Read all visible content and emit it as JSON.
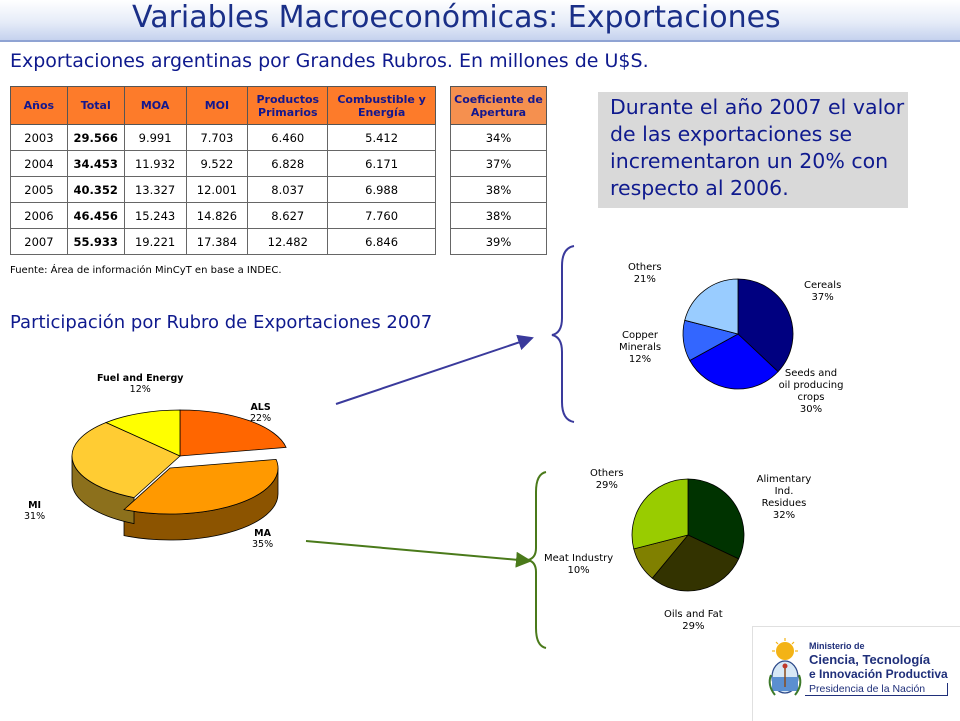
{
  "title": "Variables Macroeconómicas: Exportaciones",
  "subtitle": "Exportaciones argentinas por Grandes Rubros. En millones de U$S.",
  "table": {
    "headers": [
      "Años",
      "Total",
      "MOA",
      "MOI",
      "Productos Primarios",
      "Combustible y Energía"
    ],
    "rows": [
      [
        "2003",
        "29.566",
        "9.991",
        "7.703",
        "6.460",
        "5.412"
      ],
      [
        "2004",
        "34.453",
        "11.932",
        "9.522",
        "6.828",
        "6.171"
      ],
      [
        "2005",
        "40.352",
        "13.327",
        "12.001",
        "8.037",
        "6.988"
      ],
      [
        "2006",
        "46.456",
        "15.243",
        "14.826",
        "8.627",
        "7.760"
      ],
      [
        "2007",
        "55.933",
        "19.221",
        "17.384",
        "12.482",
        "6.846"
      ]
    ]
  },
  "ratio_table": {
    "header": "Coeficiente de Apertura",
    "values": [
      "34%",
      "37%",
      "38%",
      "38%",
      "39%"
    ]
  },
  "source": "Fuente: Área de información MinCyT en base a INDEC.",
  "note": "Durante el año 2007 el valor de las exportaciones se incrementaron un 20% con respecto al 2006.",
  "section_title": "Participación por Rubro de Exportaciones 2007",
  "colors": {
    "title": "#1a2f88",
    "header_fill": "#fd7b2a",
    "note_fill": "#d9d9d9"
  },
  "chart_data": [
    {
      "type": "pie",
      "title": "Participación por Rubro de Exportaciones 2007",
      "slices": [
        {
          "name": "ALS",
          "percent": "22%",
          "value": 22,
          "color": "#ff6600"
        },
        {
          "name": "MA",
          "percent": "35%",
          "value": 35,
          "color": "#ff9900"
        },
        {
          "name": "MI",
          "percent": "31%",
          "value": 31,
          "color": "#ffcc33"
        },
        {
          "name": "Fuel and Energy",
          "percent": "12%",
          "value": 12,
          "color": "#ffff00"
        }
      ]
    },
    {
      "type": "pie",
      "title": "",
      "slices": [
        {
          "name": "Cereals",
          "percent": "37%",
          "value": 37,
          "color": "#000080"
        },
        {
          "name": "Seeds and oil producing crops",
          "percent": "30%",
          "value": 30,
          "color": "#0000ff"
        },
        {
          "name": "Copper Minerals",
          "percent": "12%",
          "value": 12,
          "color": "#3366ff"
        },
        {
          "name": "Others",
          "percent": "21%",
          "value": 21,
          "color": "#99ccff"
        }
      ]
    },
    {
      "type": "pie",
      "title": "",
      "slices": [
        {
          "name": "Alimentary Ind. Residues",
          "percent": "32%",
          "value": 32,
          "color": "#003300"
        },
        {
          "name": "Oils and Fat",
          "percent": "29%",
          "value": 29,
          "color": "#333300"
        },
        {
          "name": "Meat Industry",
          "percent": "10%",
          "value": 10,
          "color": "#808000"
        },
        {
          "name": "Others",
          "percent": "29%",
          "value": 29,
          "color": "#99cc00"
        }
      ]
    }
  ],
  "logo": {
    "line1": "Ministerio de",
    "line2": "Ciencia, Tecnología",
    "line3": "e Innovación Productiva",
    "line4": "Presidencia de la Nación"
  }
}
